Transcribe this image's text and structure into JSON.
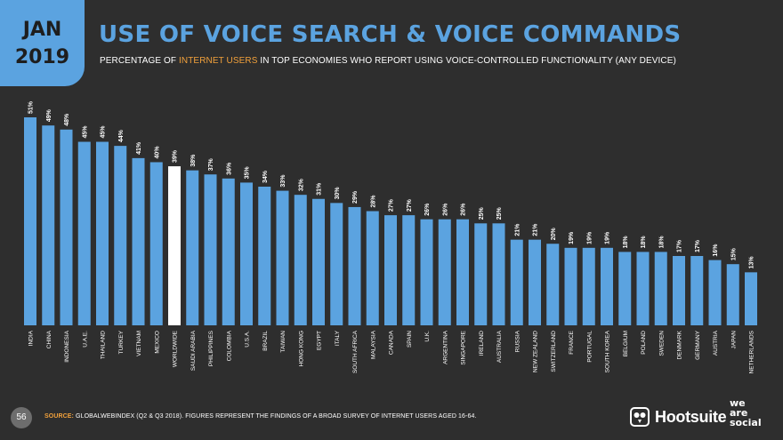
{
  "header": {
    "month": "JAN",
    "year": "2019",
    "title": "USE OF VOICE SEARCH & VOICE COMMANDS",
    "subtitle_pre": "PERCENTAGE OF ",
    "subtitle_highlight": "INTERNET USERS",
    "subtitle_post": " IN TOP ECONOMIES WHO REPORT USING VOICE-CONTROLLED FUNCTIONALITY (ANY DEVICE)"
  },
  "footer": {
    "page_number": "56",
    "source_label": "SOURCE:",
    "source_text": " GLOBALWEBINDEX (Q2 & Q3 2018). FIGURES REPRESENT THE FINDINGS OF A BROAD SURVEY OF INTERNET USERS AGED 16-64.",
    "logo_hootsuite": "Hootsuite",
    "logo_we": "we",
    "logo_are": "are",
    "logo_social": "social"
  },
  "colors": {
    "background": "#2e2e2e",
    "bar": "#5ba3e0",
    "highlight_bar": "#ffffff",
    "accent": "#f2a13b"
  },
  "chart_data": {
    "type": "bar",
    "title": "USE OF VOICE SEARCH & VOICE COMMANDS",
    "categories": [
      "INDIA",
      "CHINA",
      "INDONESIA",
      "U.A.E.",
      "THAILAND",
      "TURKEY",
      "VIETNAM",
      "MEXICO",
      "WORLDWIDE",
      "SAUDI ARABIA",
      "PHILIPPINES",
      "COLOMBIA",
      "U.S.A.",
      "BRAZIL",
      "TAIWAN",
      "HONG KONG",
      "EGYPT",
      "ITALY",
      "SOUTH AFRICA",
      "MALAYSIA",
      "CANADA",
      "SPAIN",
      "U.K.",
      "ARGENTINA",
      "SINGAPORE",
      "IRELAND",
      "AUSTRALIA",
      "RUSSIA",
      "NEW ZEALAND",
      "SWITZERLAND",
      "FRANCE",
      "PORTUGAL",
      "SOUTH KOREA",
      "BELGIUM",
      "POLAND",
      "SWEDEN",
      "DENMARK",
      "GERMANY",
      "AUSTRIA",
      "JAPAN",
      "NETHERLANDS"
    ],
    "values": [
      51,
      49,
      48,
      45,
      45,
      44,
      41,
      40,
      39,
      38,
      37,
      36,
      35,
      34,
      33,
      32,
      31,
      30,
      29,
      28,
      27,
      27,
      26,
      26,
      26,
      25,
      25,
      21,
      21,
      20,
      19,
      19,
      19,
      18,
      18,
      18,
      17,
      17,
      16,
      15,
      13
    ],
    "labels": [
      "51%",
      "49%",
      "48%",
      "45%",
      "45%",
      "44%",
      "41%",
      "40%",
      "39%",
      "38%",
      "37%",
      "36%",
      "35%",
      "34%",
      "33%",
      "32%",
      "31%",
      "30%",
      "29%",
      "28%",
      "27%",
      "27%",
      "26%",
      "26%",
      "26%",
      "25%",
      "25%",
      "21%",
      "21%",
      "20%",
      "19%",
      "19%",
      "19%",
      "18%",
      "18%",
      "18%",
      "17%",
      "17%",
      "16%",
      "15%",
      "13%"
    ],
    "highlight": "WORLDWIDE",
    "ylim": [
      0,
      51
    ],
    "grid": false,
    "legend": "none"
  }
}
